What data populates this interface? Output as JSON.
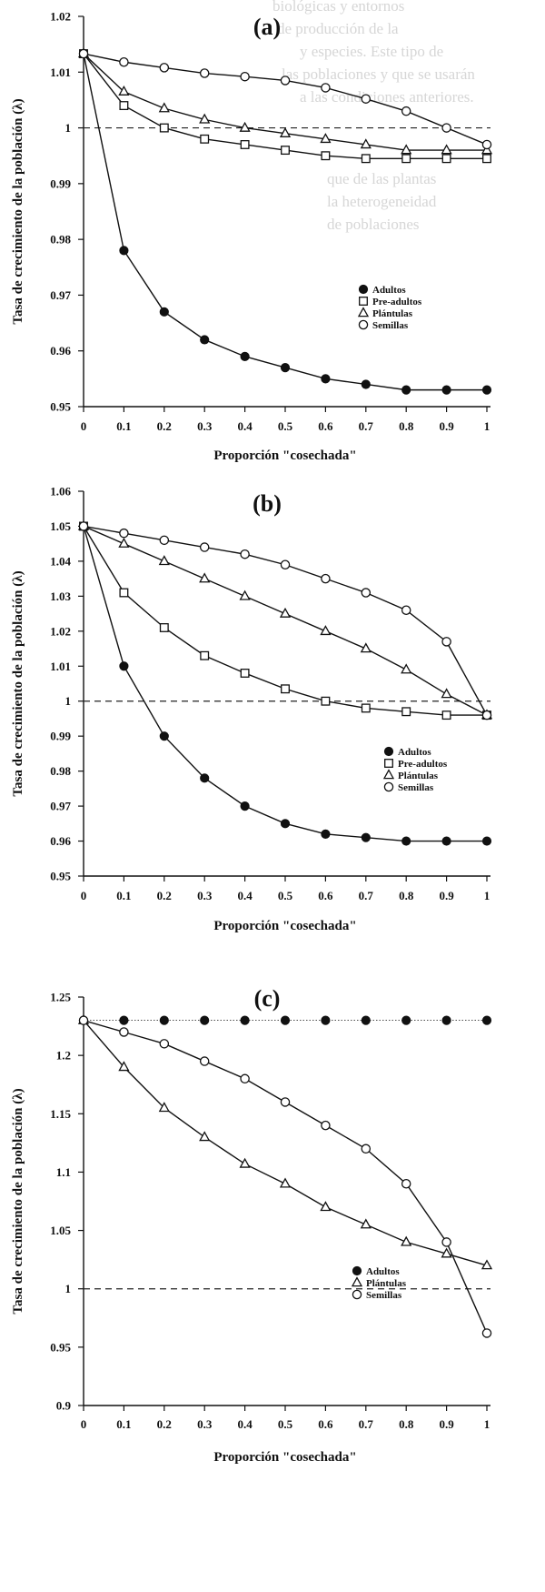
{
  "background_text": [
    "biológicas y entornos",
    "de producción de la",
    "y especies. Este tipo de",
    "las poblaciones y que se usarán",
    "a las condiciones anteriores.",
    "que de las plantas",
    "la heterogeneidad",
    "de poblaciones"
  ],
  "chart_data": [
    {
      "type": "line",
      "panel_label": "(a)",
      "xlabel": "Proporción \"cosechada\"",
      "ylabel": "Tasa de crecimiento de la población (λ)",
      "xlim": [
        0,
        1
      ],
      "ylim": [
        0.95,
        1.02
      ],
      "x_ticks": [
        "0",
        "0.1",
        "0.2",
        "0.3",
        "0.4",
        "0.5",
        "0.6",
        "0.7",
        "0.8",
        "0.9",
        "1"
      ],
      "y_ticks": [
        "0.95",
        "0.96",
        "0.97",
        "0.98",
        "0.99",
        "1",
        "1.01",
        "1.02"
      ],
      "reference_line": 1,
      "legend_position": "lower-right",
      "x": [
        0,
        0.1,
        0.2,
        0.3,
        0.4,
        0.5,
        0.6,
        0.7,
        0.8,
        0.9,
        1.0
      ],
      "series": [
        {
          "name": "Adultos",
          "marker": "filled-circle",
          "values": [
            1.0133,
            0.978,
            0.967,
            0.962,
            0.959,
            0.957,
            0.955,
            0.954,
            0.953,
            0.953,
            0.953
          ]
        },
        {
          "name": "Pre-adultos",
          "marker": "square",
          "values": [
            1.0133,
            1.004,
            1.0,
            0.998,
            0.997,
            0.996,
            0.995,
            0.9945,
            0.9945,
            0.9945,
            0.9945
          ]
        },
        {
          "name": "Plántulas",
          "marker": "triangle",
          "values": [
            1.0133,
            1.0065,
            1.0035,
            1.0015,
            1.0,
            0.999,
            0.998,
            0.997,
            0.996,
            0.996,
            0.996
          ]
        },
        {
          "name": "Semillas",
          "marker": "circle",
          "values": [
            1.0133,
            1.0118,
            1.0108,
            1.0098,
            1.0092,
            1.0085,
            1.0072,
            1.0052,
            1.003,
            1.0,
            0.997
          ]
        }
      ]
    },
    {
      "type": "line",
      "panel_label": "(b)",
      "xlabel": "Proporción \"cosechada\"",
      "ylabel": "Tasa de crecimiento de la población (λ)",
      "xlim": [
        0,
        1
      ],
      "ylim": [
        0.95,
        1.06
      ],
      "x_ticks": [
        "0",
        "0.1",
        "0.2",
        "0.3",
        "0.4",
        "0.5",
        "0.6",
        "0.7",
        "0.8",
        "0.9",
        "1"
      ],
      "y_ticks": [
        "0.95",
        "0.96",
        "0.97",
        "0.98",
        "0.99",
        "1",
        "1.01",
        "1.02",
        "1.03",
        "1.04",
        "1.05",
        "1.06"
      ],
      "reference_line": 1,
      "legend_position": "lower-right",
      "x": [
        0,
        0.1,
        0.2,
        0.3,
        0.4,
        0.5,
        0.6,
        0.7,
        0.8,
        0.9,
        1.0
      ],
      "series": [
        {
          "name": "Adultos",
          "marker": "filled-circle",
          "values": [
            1.05,
            1.01,
            0.99,
            0.978,
            0.97,
            0.965,
            0.962,
            0.961,
            0.96,
            0.96,
            0.96
          ]
        },
        {
          "name": "Pre-adultos",
          "marker": "square",
          "values": [
            1.05,
            1.031,
            1.021,
            1.013,
            1.008,
            1.0035,
            1.0,
            0.998,
            0.997,
            0.996,
            0.996
          ]
        },
        {
          "name": "Plántulas",
          "marker": "triangle",
          "values": [
            1.05,
            1.045,
            1.04,
            1.035,
            1.03,
            1.025,
            1.02,
            1.015,
            1.009,
            1.002,
            0.996
          ]
        },
        {
          "name": "Semillas",
          "marker": "circle",
          "values": [
            1.05,
            1.048,
            1.046,
            1.044,
            1.042,
            1.039,
            1.035,
            1.031,
            1.026,
            1.017,
            0.996
          ]
        }
      ]
    },
    {
      "type": "line",
      "panel_label": "(c)",
      "xlabel": "Proporción \"cosechada\"",
      "ylabel": "Tasa de crecimiento de la población (λ)",
      "xlim": [
        0,
        1
      ],
      "ylim": [
        0.9,
        1.25
      ],
      "x_ticks": [
        "0",
        "0.1",
        "0.2",
        "0.3",
        "0.4",
        "0.5",
        "0.6",
        "0.7",
        "0.8",
        "0.9",
        "1"
      ],
      "y_ticks": [
        "0.9",
        "0.95",
        "1",
        "1.05",
        "1.1",
        "1.15",
        "1.2",
        "1.25"
      ],
      "reference_line": 1,
      "legend_position": "lower-right",
      "x": [
        0,
        0.1,
        0.2,
        0.3,
        0.4,
        0.5,
        0.6,
        0.7,
        0.8,
        0.9,
        1.0
      ],
      "series": [
        {
          "name": "Adultos",
          "marker": "filled-circle",
          "values": [
            1.23,
            1.23,
            1.23,
            1.23,
            1.23,
            1.23,
            1.23,
            1.23,
            1.23,
            1.23,
            1.23
          ]
        },
        {
          "name": "Plántulas",
          "marker": "triangle",
          "values": [
            1.23,
            1.19,
            1.155,
            1.13,
            1.107,
            1.09,
            1.07,
            1.055,
            1.04,
            1.03,
            1.02
          ]
        },
        {
          "name": "Semillas",
          "marker": "circle",
          "values": [
            1.23,
            1.22,
            1.21,
            1.195,
            1.18,
            1.16,
            1.14,
            1.12,
            1.09,
            1.04,
            0.962
          ]
        }
      ]
    }
  ]
}
